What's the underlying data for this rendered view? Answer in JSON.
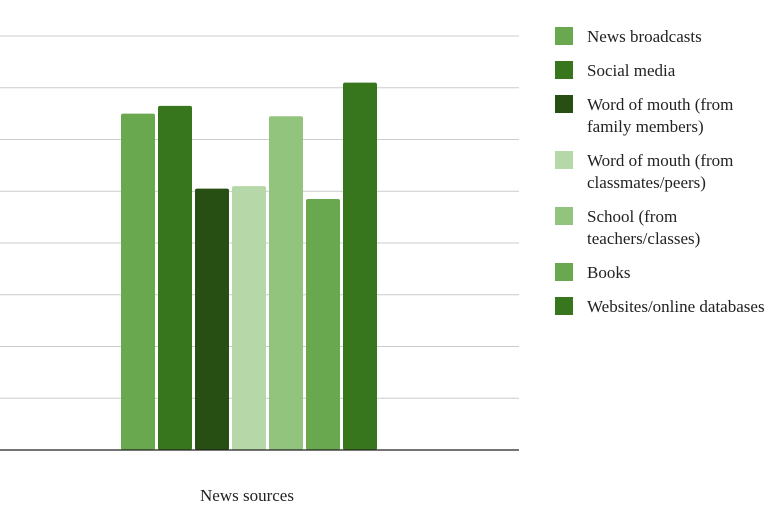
{
  "chart_data": {
    "type": "bar",
    "xlabel": "News sources",
    "ylabel": "",
    "ylim": [
      0,
      8
    ],
    "grid": true,
    "legend_position": "right",
    "series": [
      {
        "name": "News broadcasts",
        "value": 6.5,
        "color": "#6aa84f"
      },
      {
        "name": "Social media",
        "value": 6.65,
        "color": "#38761d"
      },
      {
        "name": "Word of mouth (from family members)",
        "value": 5.05,
        "color": "#274e13"
      },
      {
        "name": "Word of mouth (from classmates/peers)",
        "value": 5.1,
        "color": "#b6d7a8"
      },
      {
        "name": "School (from teachers/classes)",
        "value": 6.45,
        "color": "#93c47d"
      },
      {
        "name": "Books",
        "value": 4.85,
        "color": "#6aa84f"
      },
      {
        "name": "Websites/online databases",
        "value": 7.1,
        "color": "#38761d"
      }
    ]
  }
}
